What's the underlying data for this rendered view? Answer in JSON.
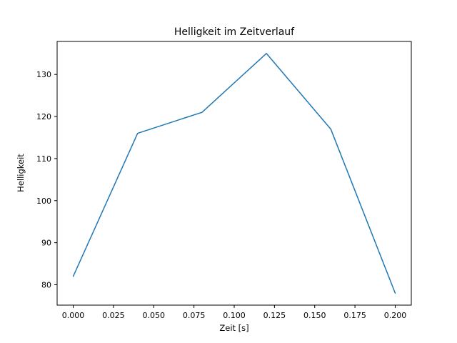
{
  "figure": {
    "background": "#ffffff"
  },
  "chart_data": {
    "type": "line",
    "title": "Helligkeit im Zeitverlauf",
    "xlabel": "Zeit [s]",
    "ylabel": "Helligkeit",
    "x": [
      0.0,
      0.04,
      0.08,
      0.12,
      0.16,
      0.2
    ],
    "y": [
      82,
      116,
      121,
      135,
      117,
      78
    ],
    "xlim": [
      -0.01,
      0.21
    ],
    "ylim": [
      75.15,
      137.85
    ],
    "xticks": [
      0.0,
      0.025,
      0.05,
      0.075,
      0.1,
      0.125,
      0.15,
      0.175,
      0.2
    ],
    "xtick_labels": [
      "0.000",
      "0.025",
      "0.050",
      "0.075",
      "0.100",
      "0.125",
      "0.150",
      "0.175",
      "0.200"
    ],
    "yticks": [
      80,
      90,
      100,
      110,
      120,
      130
    ],
    "ytick_labels": [
      "80",
      "90",
      "100",
      "110",
      "120",
      "130"
    ],
    "line_color": "#1f77b4",
    "axes_color": "#000000",
    "grid": false,
    "legend_position": "none"
  }
}
